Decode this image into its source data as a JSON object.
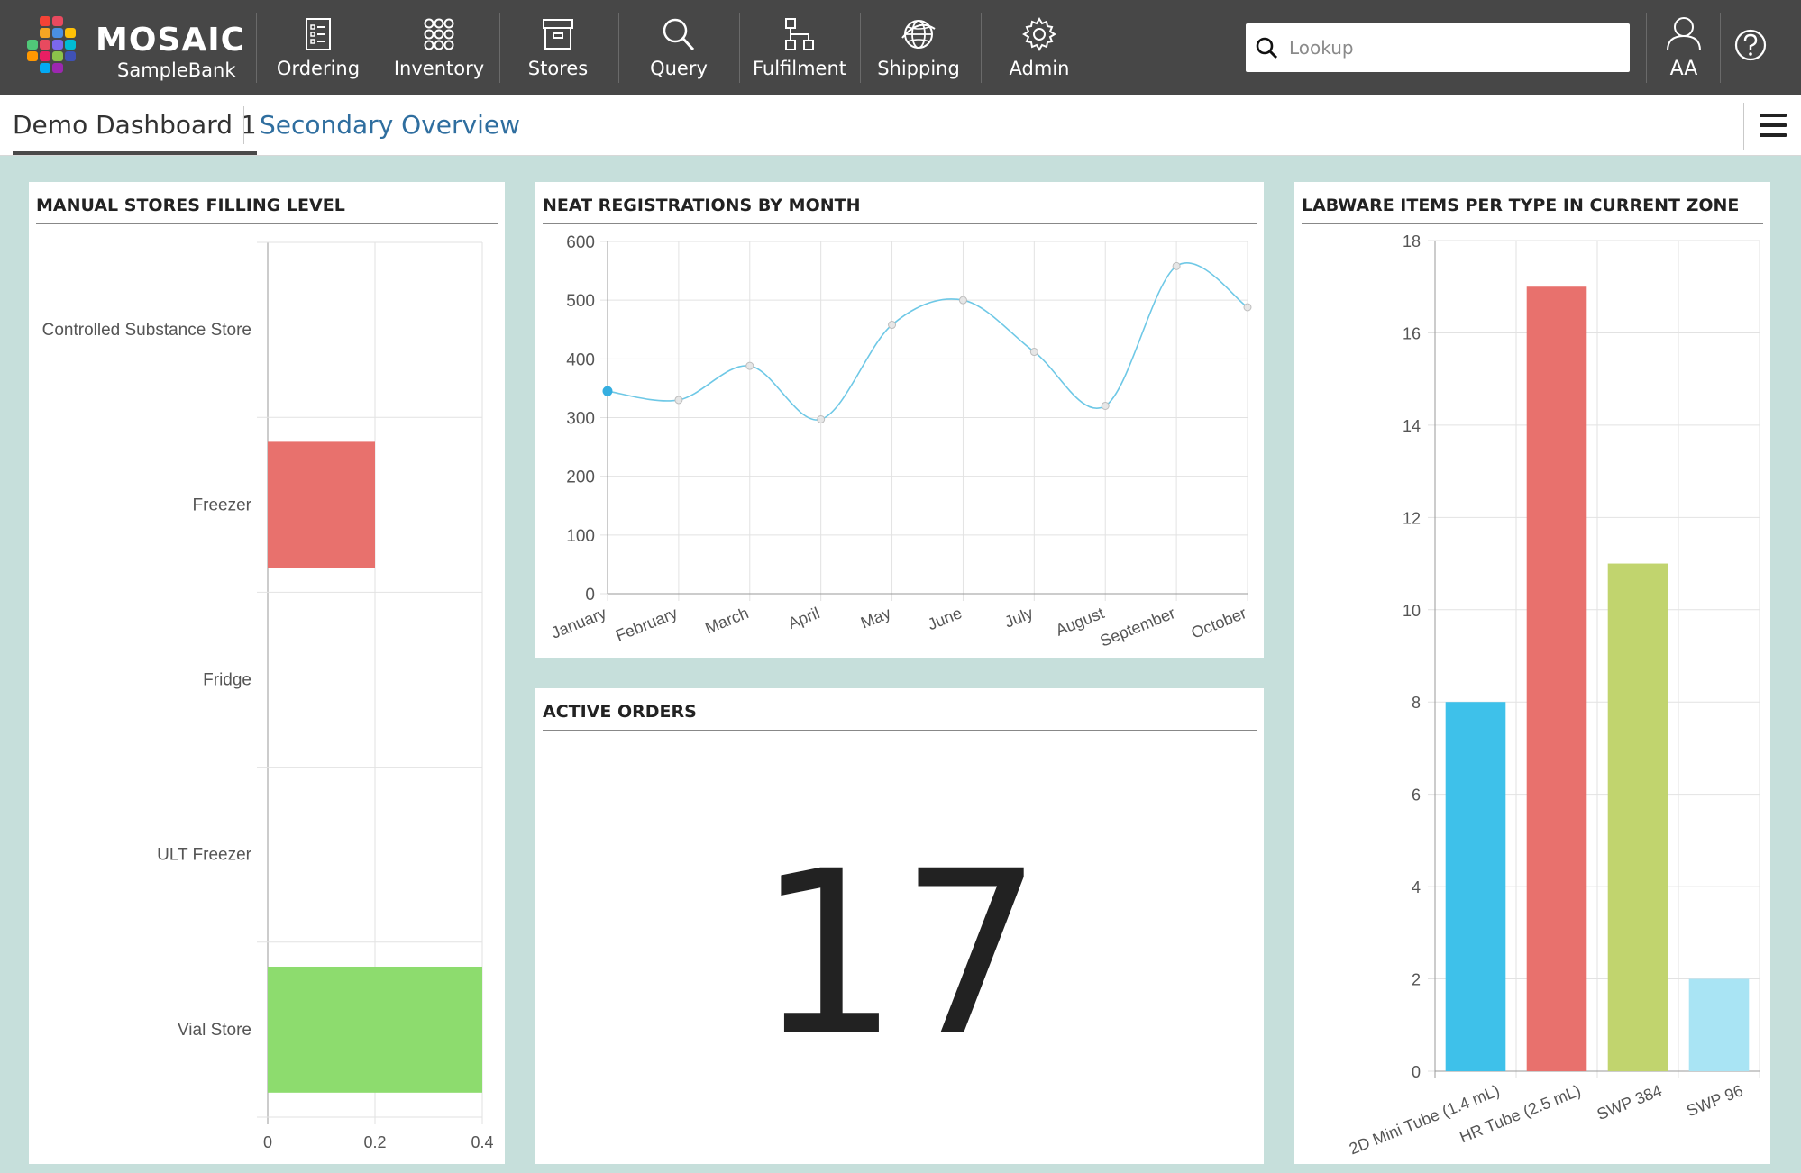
{
  "app": {
    "brand_name": "MOSAIC",
    "brand_sub": "SampleBank",
    "logo_colors": [
      "#e84a5f",
      "#f5a623",
      "#4a90e2",
      "#50c878",
      "#e84a5f",
      "#7b68ee",
      "#00bcd4",
      "#ff9800",
      "#e91e63",
      "#8bc34a",
      "#3f51b5",
      "#ffc107",
      "#f44336",
      "#03a9f4",
      "#9c27b0"
    ]
  },
  "nav": {
    "items": [
      {
        "label": "Ordering",
        "icon": "checklist-icon"
      },
      {
        "label": "Inventory",
        "icon": "grid-dots-icon"
      },
      {
        "label": "Stores",
        "icon": "archive-box-icon"
      },
      {
        "label": "Query",
        "icon": "search-icon"
      },
      {
        "label": "Fulfilment",
        "icon": "hierarchy-icon"
      },
      {
        "label": "Shipping",
        "icon": "globe-icon"
      },
      {
        "label": "Admin",
        "icon": "gear-icon"
      }
    ],
    "search_placeholder": "Lookup",
    "user_initials": "AA"
  },
  "tabs": [
    {
      "label": "Demo Dashboard 1",
      "active": true
    },
    {
      "label": "Secondary Overview",
      "active": false
    }
  ],
  "panels": {
    "stores": {
      "title": "MANUAL STORES FILLING LEVEL"
    },
    "registrations": {
      "title": "NEAT REGISTRATIONS BY MONTH"
    },
    "labware": {
      "title": "LABWARE ITEMS PER TYPE IN CURRENT ZONE"
    },
    "orders": {
      "title": "ACTIVE ORDERS",
      "value": "17"
    }
  },
  "chart_data": [
    {
      "type": "bar",
      "orientation": "horizontal",
      "categories": [
        "Controlled Substance Store",
        "Freezer",
        "Fridge",
        "ULT Freezer",
        "Vial Store"
      ],
      "values": [
        0,
        0.2,
        0,
        0,
        0.4
      ],
      "colors": [
        "#e8716d",
        "#e8716d",
        "#e8716d",
        "#e8716d",
        "#8ddc6e"
      ],
      "xlim": [
        0,
        0.4
      ],
      "xticks": [
        "0",
        "0.2",
        "0.4"
      ],
      "grid": true
    },
    {
      "type": "line",
      "categories": [
        "January",
        "February",
        "March",
        "April",
        "May",
        "June",
        "July",
        "August",
        "September",
        "October"
      ],
      "values": [
        345,
        330,
        388,
        297,
        458,
        500,
        412,
        320,
        558,
        488
      ],
      "ylim": [
        0,
        600
      ],
      "yticks": [
        "0",
        "100",
        "200",
        "300",
        "400",
        "500",
        "600"
      ],
      "color": "#6ec8e6",
      "grid": true
    },
    {
      "type": "bar",
      "categories": [
        "2D Mini Tube (1.4 mL)",
        "HR Tube (2.5 mL)",
        "SWP 384",
        "SWP 96"
      ],
      "values": [
        8,
        17,
        11,
        2
      ],
      "colors": [
        "#3ec1ea",
        "#e8716d",
        "#c1d46e",
        "#a9e4f4"
      ],
      "ylim": [
        0,
        18
      ],
      "yticks": [
        "0",
        "2",
        "4",
        "6",
        "8",
        "10",
        "12",
        "14",
        "16",
        "18"
      ],
      "grid": true
    }
  ]
}
